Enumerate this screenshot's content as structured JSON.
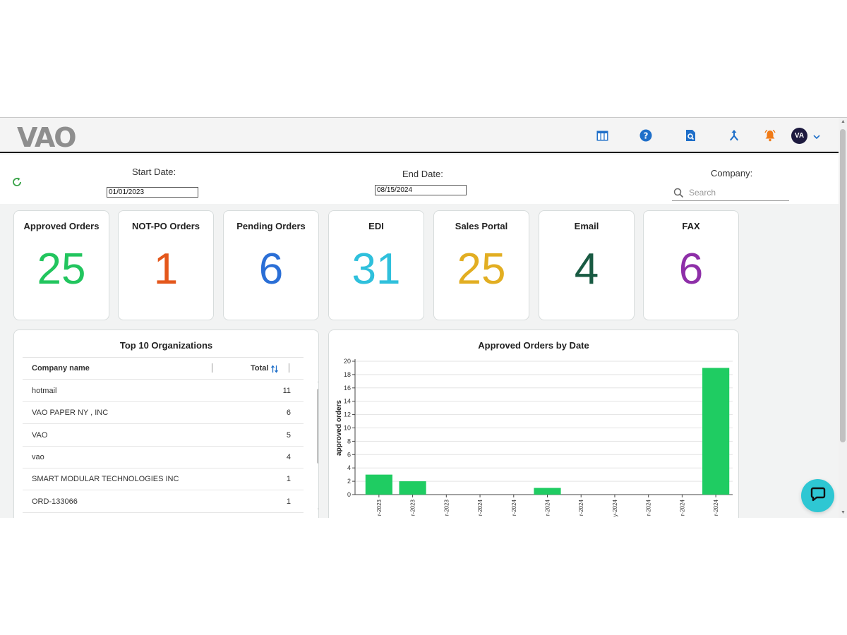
{
  "app": {
    "logo": "VAO"
  },
  "header": {
    "icons": [
      "table-icon",
      "help-icon",
      "document-search-icon",
      "merge-icon",
      "bell-icon"
    ],
    "avatar_initials": "VA"
  },
  "filters": {
    "start_label": "Start Date:",
    "start_value": "01/01/2023",
    "end_label": "End Date:",
    "end_value": "08/15/2024",
    "company_label": "Company:",
    "search_placeholder": "Search"
  },
  "cards": [
    {
      "title": "Approved Orders",
      "value": "25",
      "color": "#22c55e"
    },
    {
      "title": "NOT-PO Orders",
      "value": "1",
      "color": "#e4571b"
    },
    {
      "title": "Pending Orders",
      "value": "6",
      "color": "#2b6fd6"
    },
    {
      "title": "EDI",
      "value": "31",
      "color": "#2fc0dc"
    },
    {
      "title": "Sales Portal",
      "value": "25",
      "color": "#e2ae22"
    },
    {
      "title": "Email",
      "value": "4",
      "color": "#185a42"
    },
    {
      "title": "FAX",
      "value": "6",
      "color": "#8e2fa8"
    }
  ],
  "top_orgs": {
    "title": "Top 10 Organizations",
    "col_company": "Company name",
    "col_total": "Total",
    "rows": [
      {
        "name": "hotmail",
        "total": "11"
      },
      {
        "name": "VAO PAPER NY , INC",
        "total": "6"
      },
      {
        "name": "VAO",
        "total": "5"
      },
      {
        "name": "vao",
        "total": "4"
      },
      {
        "name": "SMART MODULAR TECHNOLOGIES INC",
        "total": "1"
      },
      {
        "name": "ORD-133066",
        "total": "1"
      }
    ]
  },
  "chart_data": {
    "type": "bar",
    "title": "Approved Orders by Date",
    "ylabel": "approved orders",
    "xlabel": "",
    "ylim": [
      0,
      20
    ],
    "yticks": [
      0,
      2,
      4,
      6,
      8,
      10,
      12,
      14,
      16,
      18,
      20
    ],
    "categories": [
      "r-2023",
      "r-2023",
      "r-2023",
      "r-2024",
      "r-2024",
      "r-2024",
      "r-2024",
      "y-2024",
      "r-2024",
      "r-2024",
      "r-2024"
    ],
    "values": [
      3,
      2,
      0,
      0,
      0,
      1,
      0,
      0,
      0,
      0,
      19
    ],
    "bar_color": "#1fcc62",
    "grid": true
  }
}
